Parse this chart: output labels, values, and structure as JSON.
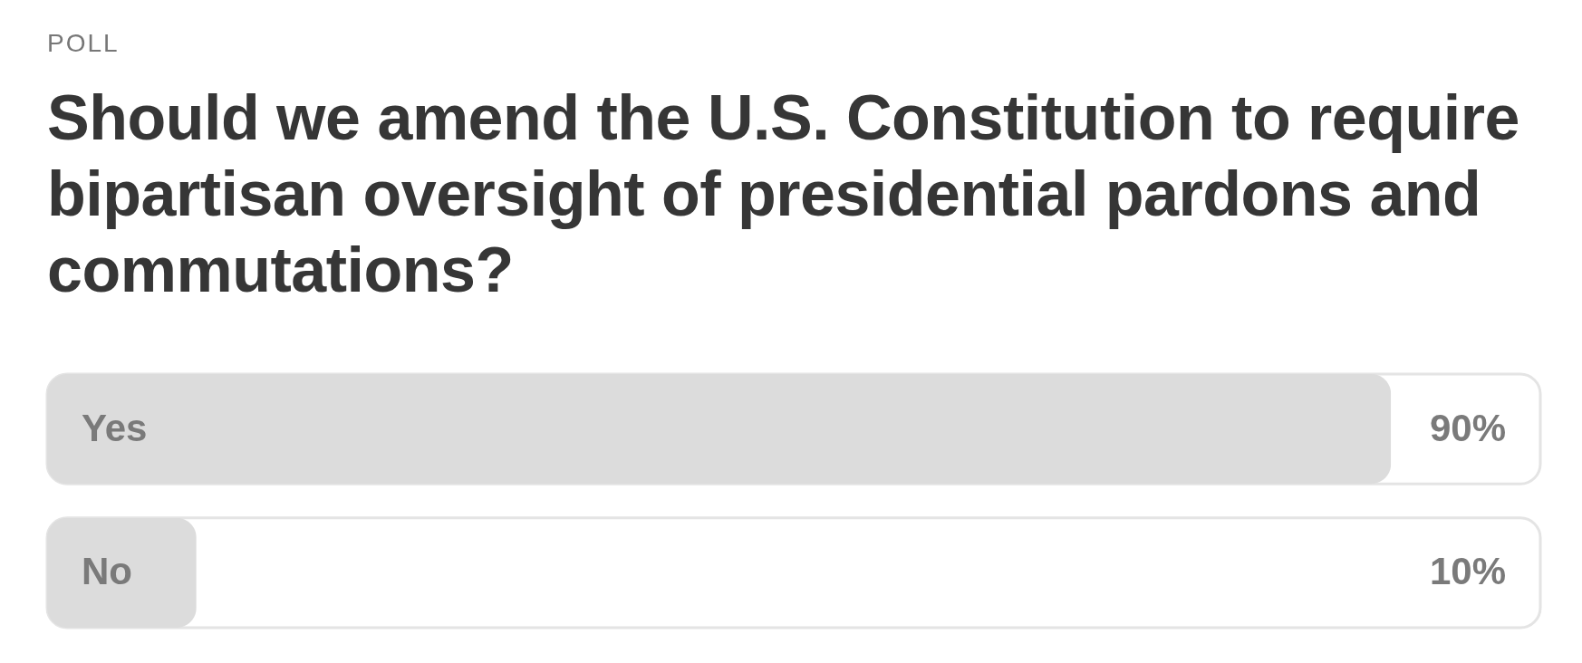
{
  "chart_data": {
    "type": "bar",
    "subtitle": "POLL",
    "title": "Should we amend the U.S. Constitution to require bipartisan oversight of presidential pardons and commutations?",
    "orientation": "horizontal",
    "categories": [
      "Yes",
      "No"
    ],
    "values": [
      90,
      10
    ],
    "value_labels": [
      "90%",
      "10%"
    ],
    "color": "#dcdcdc",
    "xlim": [
      0,
      100
    ],
    "tick_labels": false
  }
}
